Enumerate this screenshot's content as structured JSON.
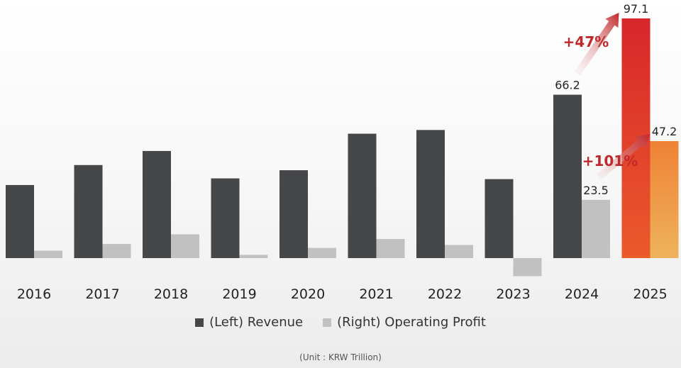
{
  "chart_data": {
    "type": "bar",
    "categories": [
      "2016",
      "2017",
      "2018",
      "2019",
      "2020",
      "2021",
      "2022",
      "2023",
      "2024",
      "2025"
    ],
    "series": [
      {
        "name": "(Left) Revenue",
        "axis": "left",
        "values": [
          29.6,
          37.7,
          43.4,
          32.3,
          35.6,
          50.4,
          51.9,
          32.0,
          66.2,
          97.1
        ]
      },
      {
        "name": "(Right) Operating Profit",
        "axis": "right",
        "values": [
          3.0,
          5.7,
          9.6,
          1.3,
          4.1,
          7.7,
          5.3,
          -7.3,
          23.5,
          47.2
        ]
      }
    ],
    "data_labels": {
      "2024_revenue": "66.2",
      "2024_profit": "23.5",
      "2025_revenue": "97.1",
      "2025_profit": "47.2"
    },
    "annotations": [
      {
        "text": "+47%",
        "from": "2024",
        "to": "2025",
        "series": "(Left) Revenue"
      },
      {
        "text": "+101%",
        "from": "2024",
        "to": "2025",
        "series": "(Right) Operating Profit"
      }
    ],
    "left_ylim": [
      0,
      97.1
    ],
    "right_ylim": [
      0,
      47.2
    ],
    "legend_position": "bottom",
    "unit_note": "(Unit : KRW Trillion)"
  },
  "colors": {
    "revenue": "#464749",
    "profit": "#c1c1c1",
    "highlight_revenue_top": "#d8262b",
    "highlight_revenue_bottom": "#ea5a2b",
    "highlight_profit_top": "#ef8235",
    "highlight_profit_bottom": "#eeb35c",
    "growth_text": "#c0292b"
  }
}
